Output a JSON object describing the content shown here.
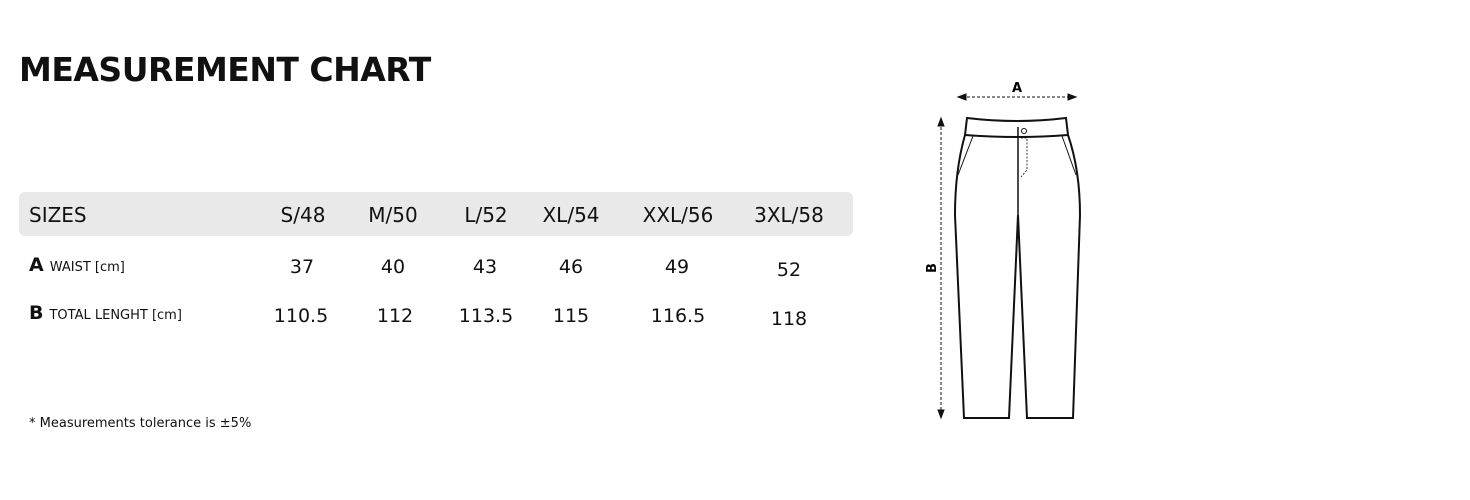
{
  "title": "MEASUREMENT CHART",
  "table": {
    "header": "SIZES",
    "sizes": [
      "S/48",
      "M/50",
      "L/52",
      "XL/54",
      "XXL/56",
      "3XL/58"
    ],
    "rows": [
      {
        "letter": "A",
        "label": "WAIST [cm]",
        "values": [
          "37",
          "40",
          "43",
          "46",
          "49",
          "52"
        ]
      },
      {
        "letter": "B",
        "label": "TOTAL LENGHT [cm]",
        "values": [
          "110.5",
          "112",
          "113.5",
          "115",
          "116.5",
          "118"
        ]
      }
    ]
  },
  "note": "* Measurements tolerance is ±5%",
  "diagram": {
    "label_a": "A",
    "label_b": "B"
  },
  "colors": {
    "header_bg": "#e9e9e9",
    "text": "#111111"
  }
}
